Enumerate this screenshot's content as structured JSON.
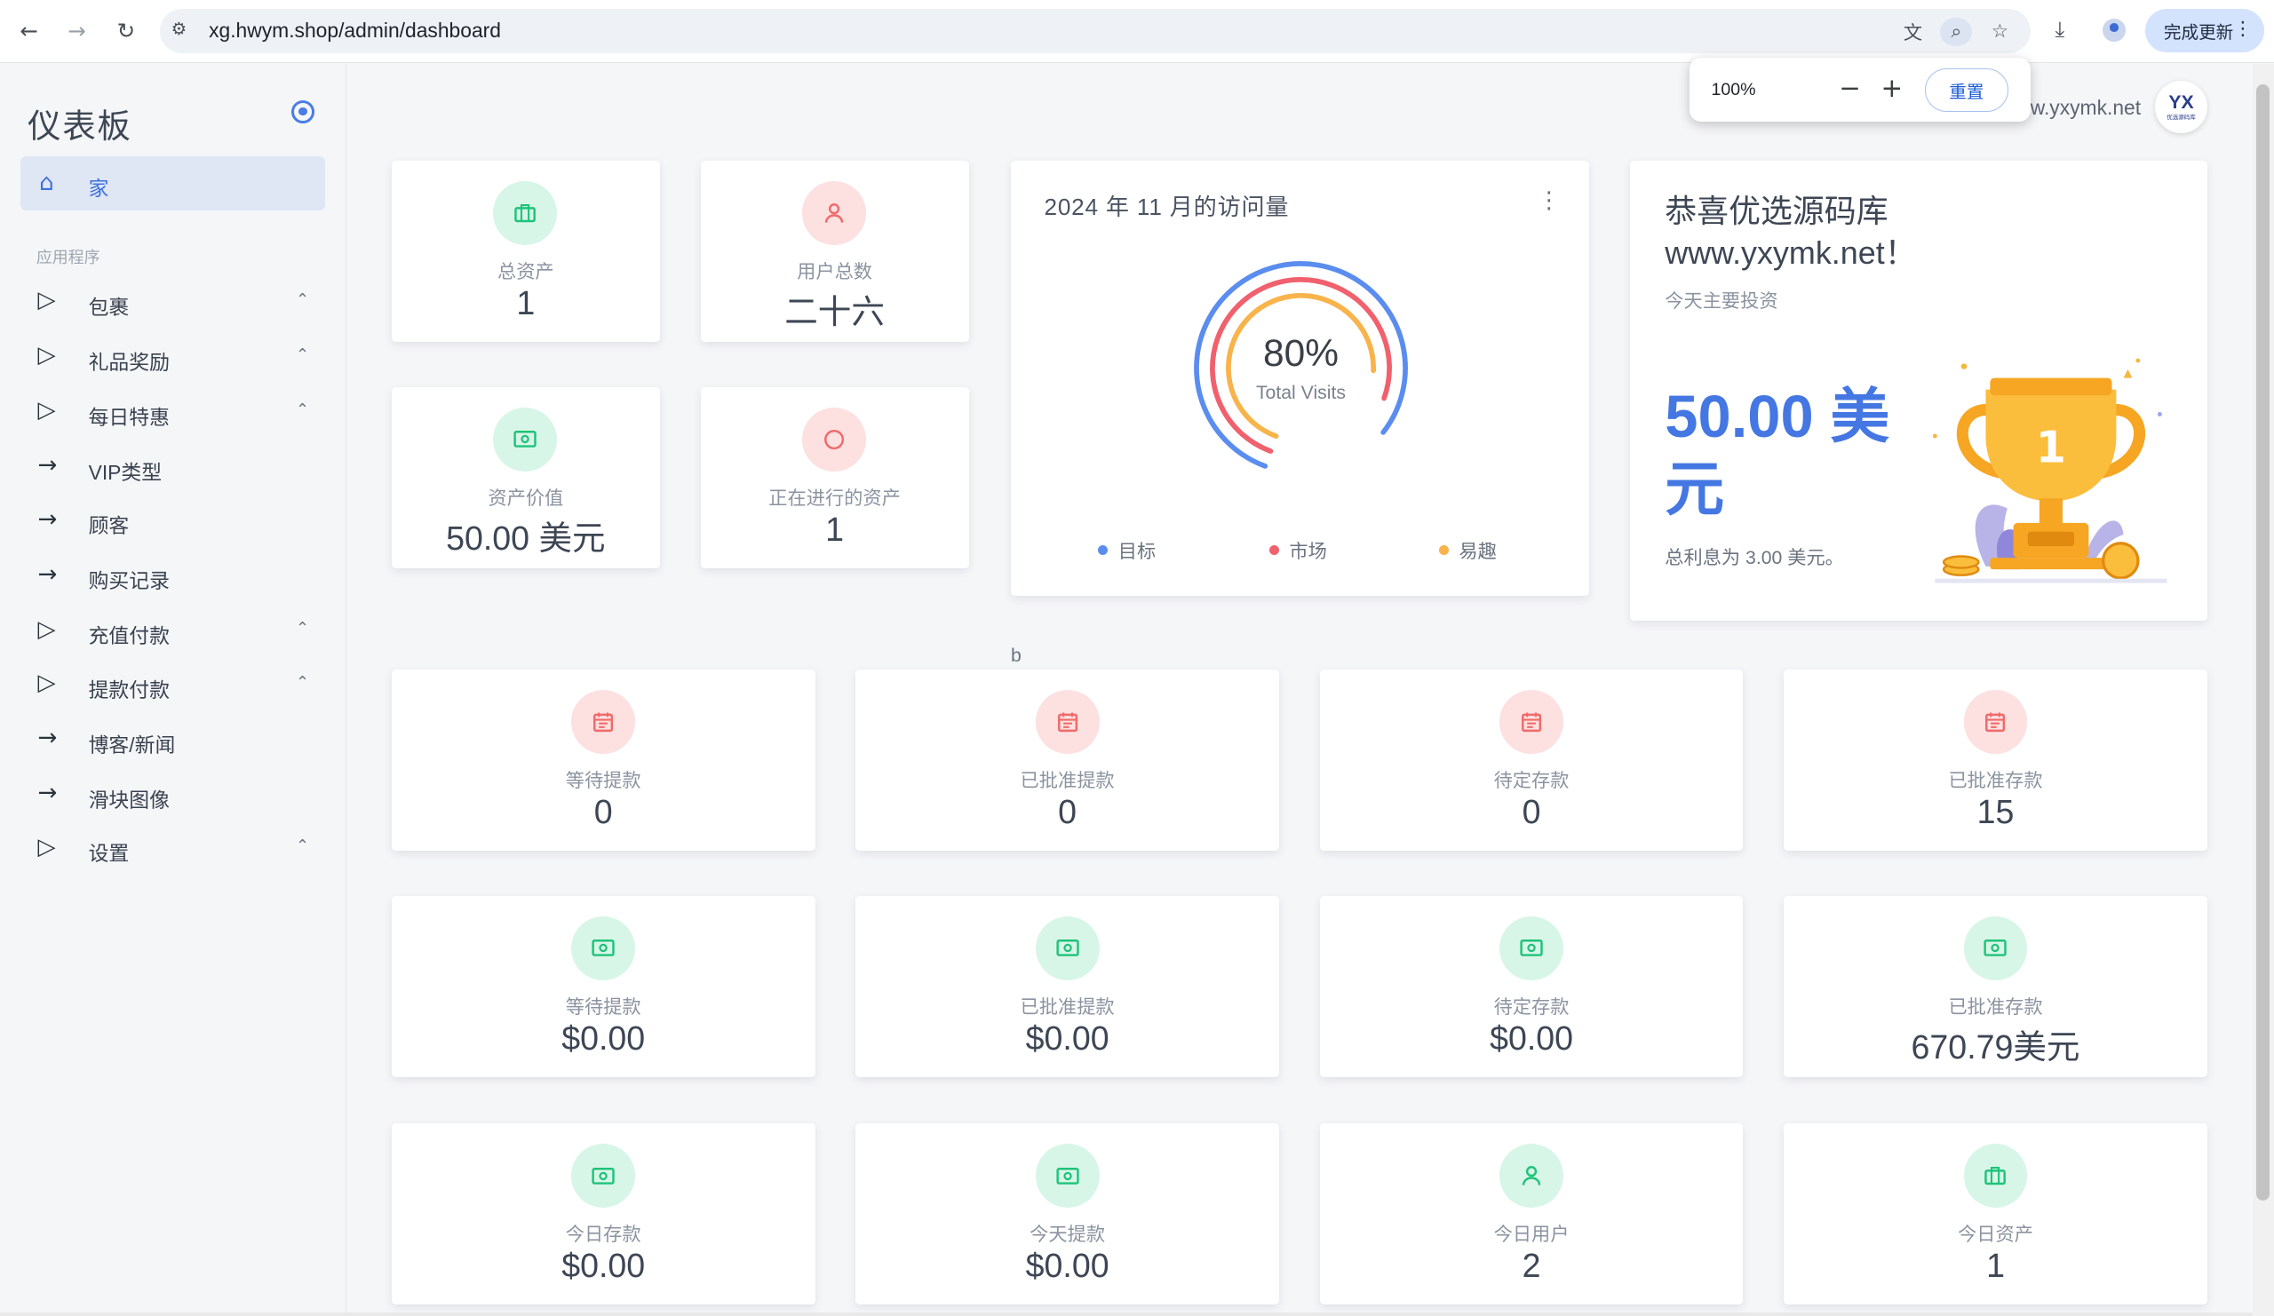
{
  "browser": {
    "url": "xg.hwym.shop/admin/dashboard",
    "update_label": "完成更新",
    "zoom_popup": {
      "value": "100%",
      "minus": "−",
      "plus": "+",
      "reset": "重置"
    }
  },
  "sidebar": {
    "title": "仪表板",
    "home": {
      "label": "家",
      "icon": "home-icon"
    },
    "section": "应用程序",
    "items": [
      {
        "label": "包裹",
        "icon": "play-triangle-icon",
        "expandable": true
      },
      {
        "label": "礼品奖励",
        "icon": "play-triangle-icon",
        "expandable": true
      },
      {
        "label": "每日特惠",
        "icon": "play-triangle-icon",
        "expandable": true
      },
      {
        "label": "VIP类型",
        "icon": "arrow-right-icon",
        "expandable": false
      },
      {
        "label": "顾客",
        "icon": "arrow-right-icon",
        "expandable": false
      },
      {
        "label": "购买记录",
        "icon": "arrow-right-icon",
        "expandable": false
      },
      {
        "label": "充值付款",
        "icon": "play-triangle-icon",
        "expandable": true
      },
      {
        "label": "提款付款",
        "icon": "play-triangle-icon",
        "expandable": true
      },
      {
        "label": "博客/新闻",
        "icon": "arrow-right-icon",
        "expandable": false
      },
      {
        "label": "滑块图像",
        "icon": "arrow-right-icon",
        "expandable": false
      },
      {
        "label": "设置",
        "icon": "play-triangle-icon",
        "expandable": true
      }
    ]
  },
  "header": {
    "site_text": "w.yxymk.net",
    "logo_text": "YX",
    "logo_sub": "优选源码库"
  },
  "top_stats": [
    {
      "label": "总资产",
      "value": "1",
      "icon": "briefcase-icon",
      "color": "green"
    },
    {
      "label": "用户总数",
      "value": "二十六",
      "icon": "user-icon",
      "color": "red"
    },
    {
      "label": "资产价值",
      "value": "50.00 美元",
      "icon": "money-icon",
      "color": "green"
    },
    {
      "label": "正在进行的资产",
      "value": "1",
      "icon": "circle-icon",
      "color": "red"
    }
  ],
  "visits_chart": {
    "title": "2024 年 11 月的访问量",
    "center_value": "80%",
    "center_label": "Total Visits",
    "legend": [
      {
        "label": "目标",
        "color": "#5b8def"
      },
      {
        "label": "市场",
        "color": "#f0616d"
      },
      {
        "label": "易趣",
        "color": "#f8b34a"
      }
    ]
  },
  "chart_data": {
    "type": "radial_bar",
    "categories": [
      "目标",
      "市场",
      "易趣"
    ],
    "values": [
      80,
      75,
      70
    ],
    "center": "80%",
    "center_label": "Total Visits",
    "max": 100
  },
  "congrats": {
    "title": "恭喜优选源码库 www.yxymk.net！",
    "subtitle": "今天主要投资",
    "amount": "50.00 美元",
    "interest": "总利息为 3.00 美元。",
    "trophy_number": "1"
  },
  "stray_text": "b",
  "grid_stats": [
    {
      "label": "等待提款",
      "value": "0",
      "icon": "calendar-icon",
      "color": "red"
    },
    {
      "label": "已批准提款",
      "value": "0",
      "icon": "calendar-icon",
      "color": "red"
    },
    {
      "label": "待定存款",
      "value": "0",
      "icon": "calendar-icon",
      "color": "red"
    },
    {
      "label": "已批准存款",
      "value": "15",
      "icon": "calendar-icon",
      "color": "red"
    },
    {
      "label": "等待提款",
      "value": "$0.00",
      "icon": "money-icon",
      "color": "green"
    },
    {
      "label": "已批准提款",
      "value": "$0.00",
      "icon": "money-icon",
      "color": "green"
    },
    {
      "label": "待定存款",
      "value": "$0.00",
      "icon": "money-icon",
      "color": "green"
    },
    {
      "label": "已批准存款",
      "value": "670.79美元",
      "icon": "money-icon",
      "color": "green"
    },
    {
      "label": "今日存款",
      "value": "$0.00",
      "icon": "money-icon",
      "color": "green"
    },
    {
      "label": "今天提款",
      "value": "$0.00",
      "icon": "money-icon",
      "color": "green"
    },
    {
      "label": "今日用户",
      "value": "2",
      "icon": "user-icon",
      "color": "green"
    },
    {
      "label": "今日资产",
      "value": "1",
      "icon": "briefcase-icon",
      "color": "green"
    }
  ]
}
